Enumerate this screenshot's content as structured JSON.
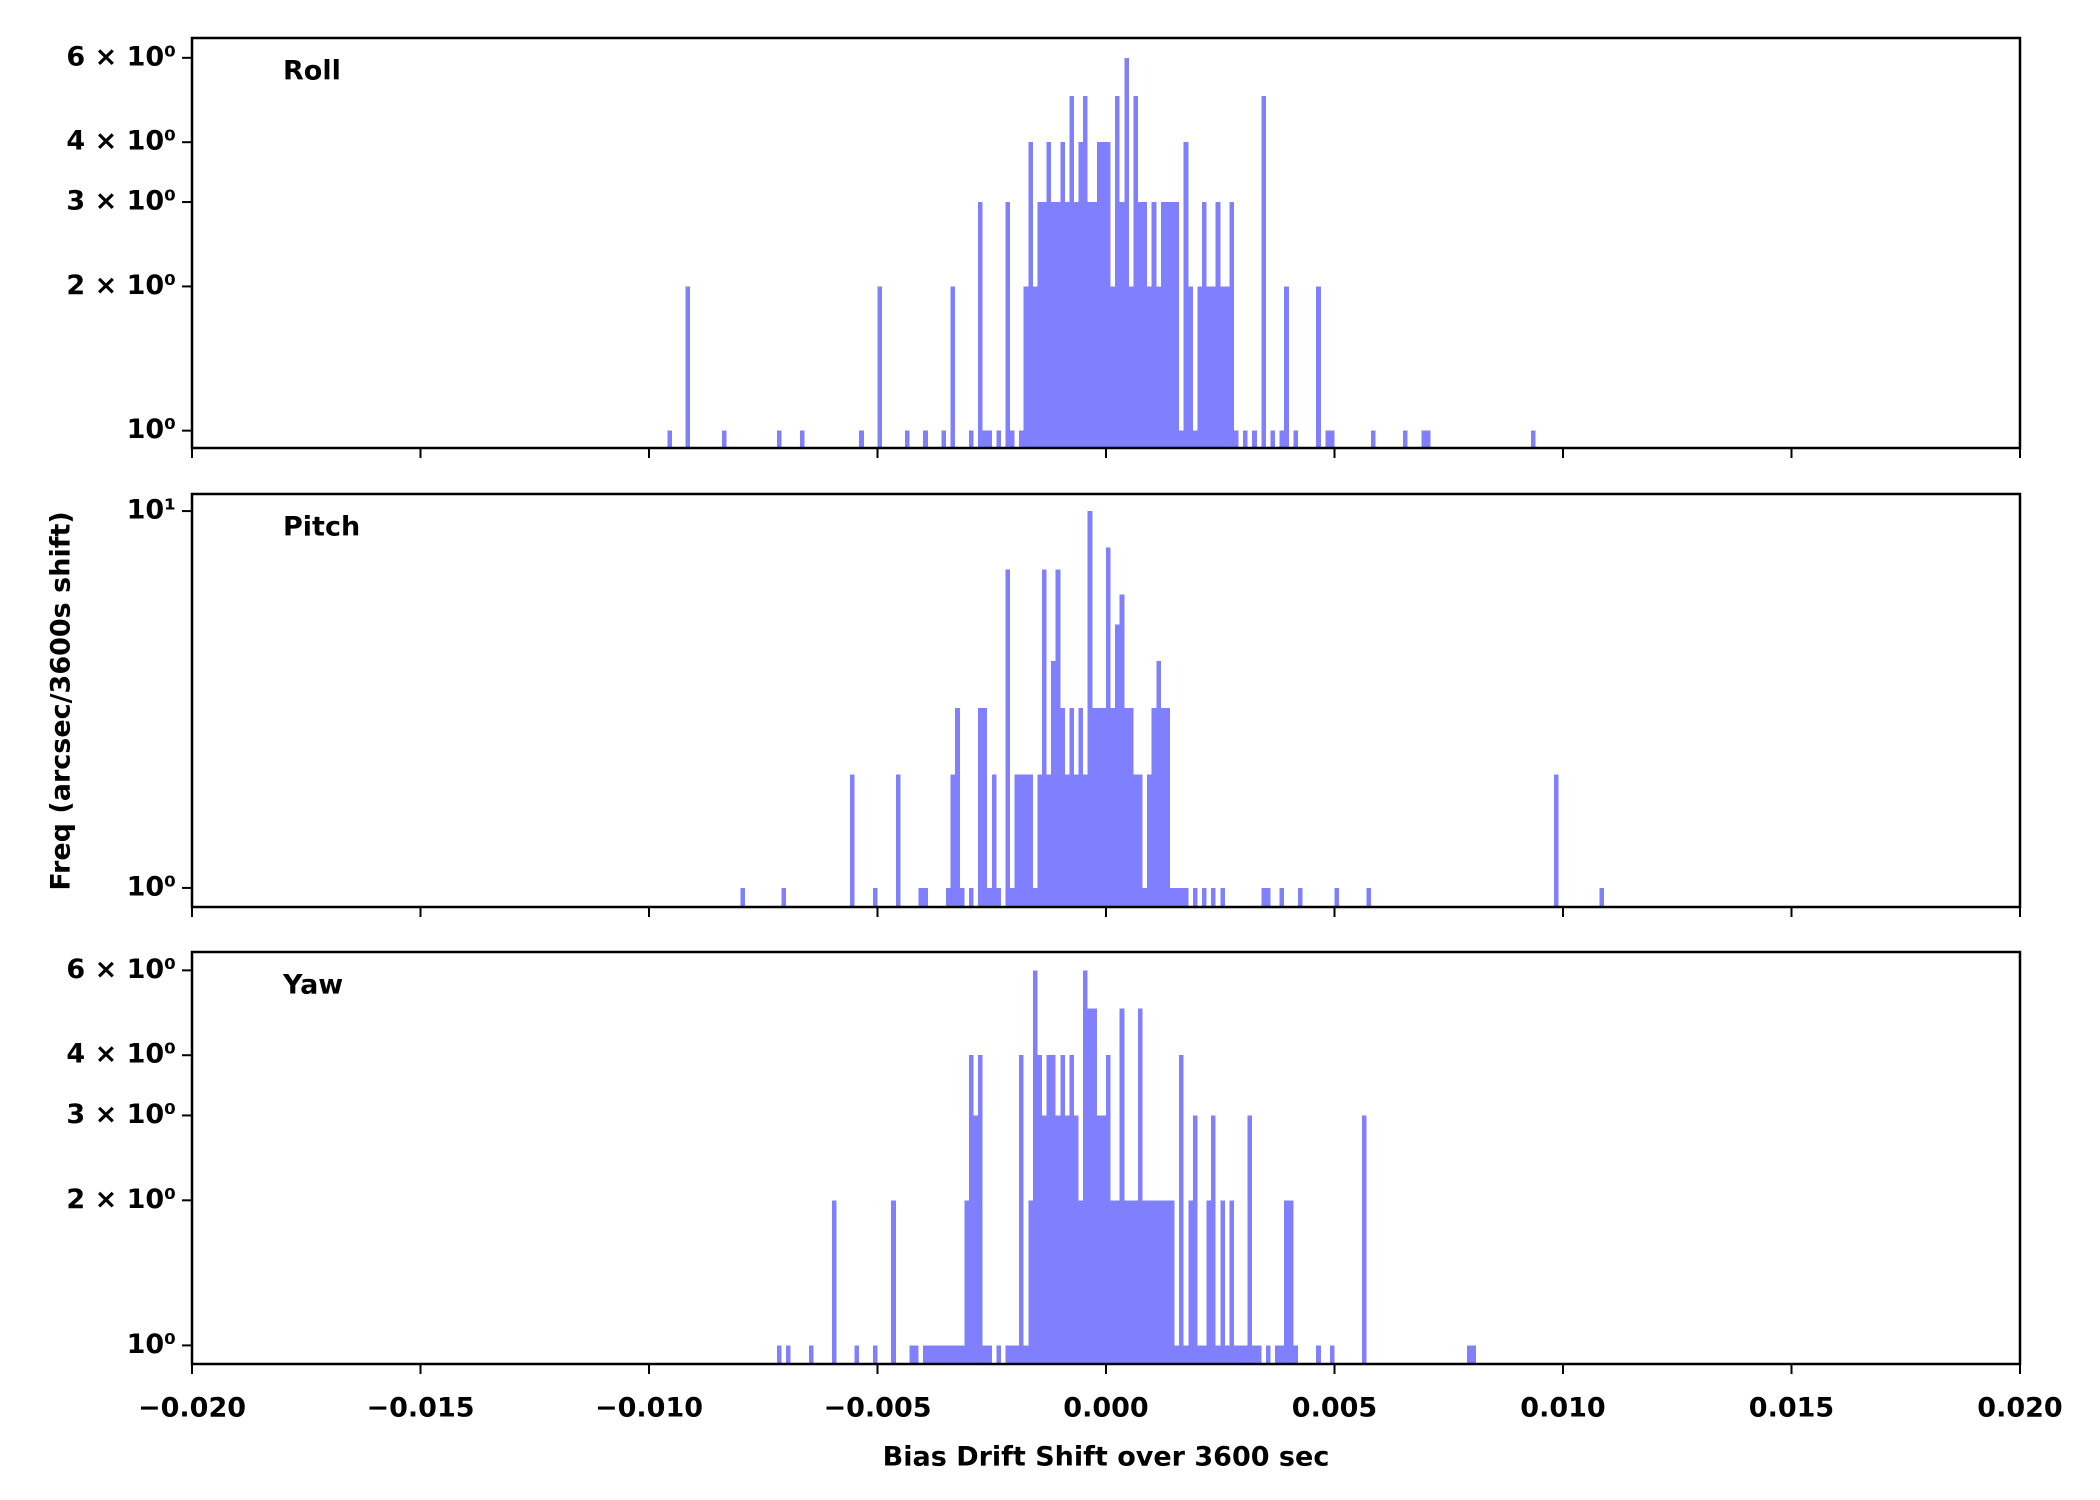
{
  "chart_data": [
    {
      "type": "histogram",
      "label": "Roll",
      "color": "#8080ff",
      "log_y": true,
      "xlim": [
        -0.02,
        0.02
      ],
      "xticks": [
        -0.02,
        -0.015,
        -0.01,
        -0.005,
        0,
        0.005,
        0.01,
        0.015,
        0.02
      ],
      "ylim": [
        0.92,
        6.6
      ],
      "yticks": [
        {
          "value": 1,
          "label": "10⁰"
        },
        {
          "value": 2,
          "label": "2 × 10⁰"
        },
        {
          "value": 3,
          "label": "3 × 10⁰"
        },
        {
          "value": 4,
          "label": "4 × 10⁰"
        },
        {
          "value": 6,
          "label": "6 × 10⁰"
        }
      ],
      "bins": [
        -0.0096,
        -0.0095,
        -0.0092,
        -0.0091,
        -0.0084,
        -0.0083,
        -0.0072,
        -0.0071,
        -0.0067,
        -0.0066,
        -0.0054,
        -0.0053,
        -0.005,
        -0.0049,
        -0.0044,
        -0.0043,
        -0.004,
        -0.0039,
        -0.0036,
        -0.0035,
        -0.0034,
        -0.0033,
        -0.003,
        -0.0029,
        -0.0028,
        -0.0027,
        -0.0026,
        -0.0025,
        -0.0024,
        -0.0023,
        -0.0022,
        -0.0021,
        -0.002,
        -0.0019,
        -0.0018,
        -0.0017,
        -0.0016,
        -0.0015,
        -0.0014,
        -0.0013,
        -0.0012,
        -0.0011,
        -0.001,
        -0.0009,
        -0.0008,
        -0.0007,
        -0.0006,
        -0.0005,
        -0.0004,
        -0.0003,
        -0.0002,
        -0.0001,
        0,
        0.0001,
        0.0002,
        0.0003,
        0.0004,
        0.0005,
        0.0006,
        0.0007,
        0.0008,
        0.0009,
        0.001,
        0.0011,
        0.0012,
        0.0013,
        0.0014,
        0.0015,
        0.0016,
        0.0017,
        0.0018,
        0.0019,
        0.002,
        0.0021,
        0.0022,
        0.0023,
        0.0024,
        0.0025,
        0.0026,
        0.0027,
        0.0028,
        0.0029,
        0.003,
        0.0031,
        0.0032,
        0.0033,
        0.0034,
        0.0035,
        0.0036,
        0.0037,
        0.0038,
        0.0039,
        0.004,
        0.0041,
        0.0042,
        0.0043,
        0.0044,
        0.0045,
        0.0046,
        0.0047,
        0.0048,
        0.0049,
        0.005,
        0.0058,
        0.0059,
        0.0065,
        0.0066,
        0.0069,
        0.007,
        0.0071,
        0.0093,
        0.0094
      ],
      "values": [
        1,
        0,
        2,
        0,
        1,
        0,
        1,
        0,
        1,
        0,
        1,
        0,
        2,
        0,
        1,
        0,
        1,
        0,
        1,
        0,
        2,
        0,
        1,
        0,
        3,
        1,
        1,
        0,
        1,
        0,
        3,
        1,
        0,
        1,
        2,
        4,
        2,
        3,
        3,
        4,
        3,
        3,
        4,
        3,
        5,
        3,
        4,
        5,
        3,
        3,
        4,
        4,
        4,
        2,
        5,
        3,
        6,
        2,
        5,
        3,
        3,
        2,
        3,
        2,
        3,
        3,
        3,
        3,
        1,
        4,
        2,
        1,
        2,
        3,
        2,
        2,
        3,
        2,
        2,
        3,
        1,
        0,
        1,
        0,
        1,
        0,
        5,
        0,
        1,
        0,
        1,
        2,
        0,
        1,
        0,
        0,
        0,
        0,
        2,
        0,
        1,
        1,
        0,
        1,
        0,
        1,
        0,
        1,
        1,
        0,
        1
      ]
    },
    {
      "type": "histogram",
      "label": "Pitch",
      "color": "#8080ff",
      "log_y": true,
      "ylabel": "Freq (arcsec/3600s shift)",
      "xlim": [
        -0.02,
        0.02
      ],
      "xticks": [
        -0.02,
        -0.015,
        -0.01,
        -0.005,
        0,
        0.005,
        0.01,
        0.015,
        0.02
      ],
      "ylim": [
        0.89,
        11.1
      ],
      "yticks": [
        {
          "value": 1,
          "label": "10⁰"
        },
        {
          "value": 10,
          "label": "10¹"
        }
      ],
      "bins": [
        -0.008,
        -0.0079,
        -0.0071,
        -0.007,
        -0.0056,
        -0.0055,
        -0.0051,
        -0.005,
        -0.0046,
        -0.0045,
        -0.0041,
        -0.004,
        -0.0039,
        -0.0035,
        -0.0034,
        -0.0033,
        -0.0032,
        -0.0031,
        -0.003,
        -0.0029,
        -0.0028,
        -0.0027,
        -0.0026,
        -0.0025,
        -0.0024,
        -0.0023,
        -0.0022,
        -0.0021,
        -0.002,
        -0.0019,
        -0.0018,
        -0.0017,
        -0.0016,
        -0.0015,
        -0.0014,
        -0.0013,
        -0.0012,
        -0.0011,
        -0.001,
        -0.0009,
        -0.0008,
        -0.0007,
        -0.0006,
        -0.0005,
        -0.0004,
        -0.0003,
        -0.0002,
        -0.0001,
        0,
        0.0001,
        0.0002,
        0.0003,
        0.0004,
        0.0005,
        0.0006,
        0.0007,
        0.0008,
        0.0009,
        0.001,
        0.0011,
        0.0012,
        0.0013,
        0.0014,
        0.0015,
        0.0016,
        0.0017,
        0.0018,
        0.0019,
        0.002,
        0.0021,
        0.0022,
        0.0023,
        0.0024,
        0.0025,
        0.0026,
        0.0034,
        0.0036,
        0.0038,
        0.0039,
        0.0042,
        0.0043,
        0.005,
        0.0051,
        0.0057,
        0.0058,
        0.0098,
        0.0099,
        0.0108,
        0.0109
      ],
      "values": [
        1,
        0,
        1,
        0,
        2,
        0,
        1,
        0,
        2,
        0,
        1,
        1,
        0,
        1,
        2,
        3,
        1,
        0,
        1,
        0,
        3,
        3,
        1,
        2,
        1,
        0,
        7,
        1,
        2,
        2,
        2,
        2,
        1,
        2,
        7,
        2,
        4,
        7,
        3,
        2,
        3,
        2,
        3,
        2,
        10,
        3,
        3,
        3,
        8,
        3,
        5,
        6,
        3,
        3,
        2,
        2,
        1,
        2,
        3,
        4,
        3,
        3,
        1,
        1,
        1,
        1,
        0,
        1,
        0,
        1,
        0,
        1,
        0,
        1,
        0,
        1,
        0,
        1,
        0,
        1,
        0,
        1,
        0,
        1,
        0,
        2,
        0,
        1
      ]
    },
    {
      "type": "histogram",
      "label": "Yaw",
      "color": "#8080ff",
      "log_y": true,
      "xlabel": "Bias Drift Shift over 3600 sec",
      "xlim": [
        -0.02,
        0.02
      ],
      "xticks": [
        {
          "value": -0.02,
          "label": "−0.020"
        },
        {
          "value": -0.015,
          "label": "−0.015"
        },
        {
          "value": -0.01,
          "label": "−0.010"
        },
        {
          "value": -0.005,
          "label": "−0.005"
        },
        {
          "value": 0,
          "label": "0.000"
        },
        {
          "value": 0.005,
          "label": "0.005"
        },
        {
          "value": 0.01,
          "label": "0.010"
        },
        {
          "value": 0.015,
          "label": "0.015"
        },
        {
          "value": 0.02,
          "label": "0.020"
        }
      ],
      "ylim": [
        0.915,
        6.55
      ],
      "yticks": [
        {
          "value": 1,
          "label": "10⁰"
        },
        {
          "value": 2,
          "label": "2 × 10⁰"
        },
        {
          "value": 3,
          "label": "3 × 10⁰"
        },
        {
          "value": 4,
          "label": "4 × 10⁰"
        },
        {
          "value": 6,
          "label": "6 × 10⁰"
        }
      ],
      "bins": [
        -0.0072,
        -0.0071,
        -0.007,
        -0.0069,
        -0.0065,
        -0.0064,
        -0.006,
        -0.0059,
        -0.0055,
        -0.0054,
        -0.0051,
        -0.005,
        -0.0047,
        -0.0046,
        -0.0043,
        -0.0042,
        -0.0041,
        -0.004,
        -0.0039,
        -0.0038,
        -0.0037,
        -0.0036,
        -0.0035,
        -0.0034,
        -0.0033,
        -0.0032,
        -0.0031,
        -0.003,
        -0.0029,
        -0.0028,
        -0.0027,
        -0.0026,
        -0.0025,
        -0.0024,
        -0.0023,
        -0.0022,
        -0.0021,
        -0.002,
        -0.0019,
        -0.0018,
        -0.0017,
        -0.0016,
        -0.0015,
        -0.0014,
        -0.0013,
        -0.0012,
        -0.0011,
        -0.001,
        -0.0009,
        -0.0008,
        -0.0007,
        -0.0006,
        -0.0005,
        -0.0004,
        -0.0003,
        -0.0002,
        -0.0001,
        0,
        0.0001,
        0.0002,
        0.0003,
        0.0004,
        0.0005,
        0.0006,
        0.0007,
        0.0008,
        0.0009,
        0.001,
        0.0011,
        0.0012,
        0.0013,
        0.0014,
        0.0015,
        0.0016,
        0.0017,
        0.0018,
        0.0019,
        0.002,
        0.0021,
        0.0022,
        0.0023,
        0.0024,
        0.0025,
        0.0026,
        0.0027,
        0.0028,
        0.0029,
        0.003,
        0.0031,
        0.0032,
        0.0033,
        0.0034,
        0.0035,
        0.0036,
        0.0037,
        0.0038,
        0.0039,
        0.004,
        0.0041,
        0.0042,
        0.0043,
        0.0044,
        0.0045,
        0.0046,
        0.0047,
        0.0048,
        0.0049,
        0.005,
        0.0056,
        0.0057,
        0.0079,
        0.008,
        0.0081
      ],
      "values": [
        1,
        0,
        1,
        0,
        1,
        0,
        2,
        0,
        1,
        0,
        1,
        0,
        2,
        0,
        1,
        1,
        0,
        1,
        1,
        1,
        1,
        1,
        1,
        1,
        1,
        1,
        2,
        4,
        3,
        4,
        1,
        1,
        0,
        1,
        0,
        1,
        1,
        1,
        4,
        1,
        2,
        6,
        4,
        3,
        4,
        4,
        3,
        4,
        3,
        4,
        3,
        2,
        6,
        5,
        5,
        3,
        3,
        4,
        2,
        2,
        5,
        2,
        2,
        2,
        5,
        2,
        2,
        2,
        2,
        2,
        2,
        2,
        1,
        4,
        1,
        2,
        3,
        1,
        1,
        2,
        3,
        1,
        2,
        1,
        2,
        1,
        1,
        1,
        3,
        1,
        1,
        0,
        1,
        0,
        1,
        1,
        2,
        2,
        1,
        0,
        0,
        0,
        0,
        1,
        0,
        0,
        1,
        0,
        3,
        0,
        1,
        1
      ]
    }
  ]
}
